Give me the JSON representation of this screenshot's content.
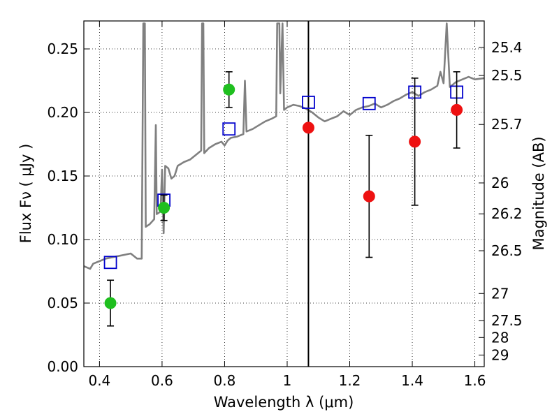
{
  "chart_data": {
    "type": "scatter",
    "xlabel": "Wavelength  λ (μm)",
    "ylabel": "Flux  Fν  ( μJy )",
    "y2label": "Magnitude (AB)",
    "xlim": [
      0.35,
      1.63
    ],
    "ylim": [
      0.0,
      0.272
    ],
    "x_ticks": [
      0.4,
      0.6,
      0.8,
      1.0,
      1.2,
      1.4,
      1.6
    ],
    "x_tick_labels": [
      "0.4",
      "0.6",
      "0.8",
      "1",
      "1.2",
      "1.4",
      "1.6"
    ],
    "y_ticks": [
      0.0,
      0.05,
      0.1,
      0.15,
      0.2,
      0.25
    ],
    "y_tick_labels": [
      "0.00",
      "0.05",
      "0.10",
      "0.15",
      "0.20",
      "0.25"
    ],
    "mag_ticks": [
      25.4,
      25.5,
      25.7,
      26,
      26.2,
      26.5,
      27,
      27.5,
      28,
      29
    ],
    "mag_tick_labels": [
      "25.4",
      "25.5",
      "25.7",
      "26",
      "26.2",
      "26.5",
      "27",
      "27.5",
      "28",
      "29"
    ],
    "grid": true,
    "vertical_line_x": 1.068,
    "colors": {
      "model": "#808080",
      "green": "#1fbf1f",
      "red": "#ee1111",
      "blue": "#0000cc",
      "errorbar": "#000000",
      "vline": "#000000"
    },
    "series": [
      {
        "kind": "model-spectrum",
        "points": [
          [
            0.35,
            0.079
          ],
          [
            0.37,
            0.077
          ],
          [
            0.38,
            0.081
          ],
          [
            0.4,
            0.083
          ],
          [
            0.42,
            0.085
          ],
          [
            0.44,
            0.086
          ],
          [
            0.46,
            0.087
          ],
          [
            0.48,
            0.088
          ],
          [
            0.5,
            0.089
          ],
          [
            0.52,
            0.085
          ],
          [
            0.535,
            0.085
          ],
          [
            0.54,
            0.27
          ],
          [
            0.545,
            0.27
          ],
          [
            0.548,
            0.11
          ],
          [
            0.56,
            0.112
          ],
          [
            0.575,
            0.116
          ],
          [
            0.58,
            0.19
          ],
          [
            0.583,
            0.12
          ],
          [
            0.595,
            0.122
          ],
          [
            0.6,
            0.155
          ],
          [
            0.605,
            0.105
          ],
          [
            0.61,
            0.158
          ],
          [
            0.62,
            0.156
          ],
          [
            0.63,
            0.148
          ],
          [
            0.64,
            0.15
          ],
          [
            0.65,
            0.158
          ],
          [
            0.67,
            0.161
          ],
          [
            0.69,
            0.163
          ],
          [
            0.71,
            0.167
          ],
          [
            0.725,
            0.17
          ],
          [
            0.728,
            0.27
          ],
          [
            0.732,
            0.27
          ],
          [
            0.735,
            0.168
          ],
          [
            0.75,
            0.172
          ],
          [
            0.77,
            0.175
          ],
          [
            0.79,
            0.177
          ],
          [
            0.8,
            0.174
          ],
          [
            0.81,
            0.178
          ],
          [
            0.82,
            0.18
          ],
          [
            0.84,
            0.181
          ],
          [
            0.86,
            0.183
          ],
          [
            0.865,
            0.225
          ],
          [
            0.87,
            0.185
          ],
          [
            0.89,
            0.187
          ],
          [
            0.91,
            0.19
          ],
          [
            0.93,
            0.193
          ],
          [
            0.95,
            0.195
          ],
          [
            0.965,
            0.197
          ],
          [
            0.968,
            0.27
          ],
          [
            0.975,
            0.27
          ],
          [
            0.978,
            0.215
          ],
          [
            0.985,
            0.27
          ],
          [
            0.99,
            0.202
          ],
          [
            1.0,
            0.204
          ],
          [
            1.02,
            0.206
          ],
          [
            1.04,
            0.205
          ],
          [
            1.06,
            0.203
          ],
          [
            1.08,
            0.2
          ],
          [
            1.1,
            0.196
          ],
          [
            1.12,
            0.193
          ],
          [
            1.14,
            0.195
          ],
          [
            1.16,
            0.197
          ],
          [
            1.18,
            0.201
          ],
          [
            1.2,
            0.198
          ],
          [
            1.22,
            0.202
          ],
          [
            1.24,
            0.204
          ],
          [
            1.26,
            0.205
          ],
          [
            1.28,
            0.207
          ],
          [
            1.3,
            0.204
          ],
          [
            1.32,
            0.206
          ],
          [
            1.34,
            0.209
          ],
          [
            1.36,
            0.211
          ],
          [
            1.38,
            0.214
          ],
          [
            1.4,
            0.216
          ],
          [
            1.42,
            0.213
          ],
          [
            1.44,
            0.216
          ],
          [
            1.46,
            0.218
          ],
          [
            1.48,
            0.221
          ],
          [
            1.49,
            0.232
          ],
          [
            1.5,
            0.223
          ],
          [
            1.51,
            0.27
          ],
          [
            1.52,
            0.22
          ],
          [
            1.54,
            0.224
          ],
          [
            1.56,
            0.226
          ],
          [
            1.58,
            0.228
          ],
          [
            1.6,
            0.226
          ],
          [
            1.63,
            0.227
          ]
        ]
      },
      {
        "kind": "green-circles",
        "points": [
          {
            "x": 0.435,
            "y": 0.05,
            "err": 0.018
          },
          {
            "x": 0.606,
            "y": 0.125,
            "err": 0.01
          },
          {
            "x": 0.814,
            "y": 0.218,
            "err": 0.014
          }
        ]
      },
      {
        "kind": "red-circles",
        "points": [
          {
            "x": 1.068,
            "y": 0.188
          },
          {
            "x": 1.262,
            "y": 0.134,
            "err": 0.048
          },
          {
            "x": 1.408,
            "y": 0.177,
            "err": 0.05
          },
          {
            "x": 1.542,
            "y": 0.202,
            "err": 0.03
          }
        ]
      },
      {
        "kind": "blue-squares",
        "points": [
          {
            "x": 0.435,
            "y": 0.082
          },
          {
            "x": 0.606,
            "y": 0.131
          },
          {
            "x": 0.814,
            "y": 0.187
          },
          {
            "x": 1.068,
            "y": 0.208
          },
          {
            "x": 1.262,
            "y": 0.207
          },
          {
            "x": 1.408,
            "y": 0.216
          },
          {
            "x": 1.542,
            "y": 0.216
          }
        ]
      }
    ]
  }
}
